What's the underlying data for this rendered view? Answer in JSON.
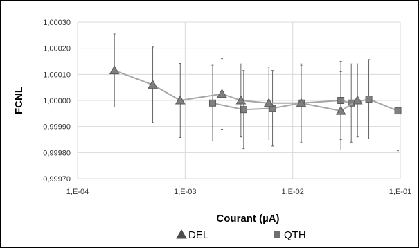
{
  "chart_data": {
    "type": "line",
    "title": "",
    "xlabel": "Courant (µA)",
    "ylabel": "FCNL",
    "x_scale": "log",
    "xlim": [
      0.0001,
      0.1
    ],
    "ylim": [
      0.9997,
      1.0003
    ],
    "y_ticks": [
      "1,00030",
      "1,00020",
      "1,00010",
      "1,00000",
      "0,99990",
      "0,99980",
      "0,99970"
    ],
    "x_ticks": [
      "1,E-04",
      "1,E-03",
      "1,E-02",
      "1,E-01"
    ],
    "grid": true,
    "legend_position": "bottom",
    "series": [
      {
        "name": "DEL",
        "marker": "triangle",
        "color": "#7f7f7f",
        "x": [
          0.00022,
          0.0005,
          0.0009,
          0.0022,
          0.0033,
          0.006,
          0.012,
          0.028,
          0.04
        ],
        "y": [
          1.000115,
          1.00006,
          1.0,
          1.000025,
          1.0,
          0.99999,
          0.99999,
          0.99996,
          1.0
        ],
        "err": [
          0.00014,
          0.000145,
          0.000142,
          0.000135,
          0.00014,
          0.000138,
          0.000145,
          0.00015,
          0.00014
        ]
      },
      {
        "name": "QTH",
        "marker": "square",
        "color": "#808080",
        "x": [
          0.0018,
          0.0035,
          0.0065,
          0.012,
          0.028,
          0.035,
          0.051,
          0.095
        ],
        "y": [
          0.99999,
          0.999965,
          0.99997,
          0.99999,
          1.0,
          0.99999,
          1.000005,
          0.99996
        ],
        "err": [
          0.000145,
          0.00015,
          0.000145,
          0.00015,
          0.00015,
          0.00015,
          0.000152,
          0.000153
        ]
      }
    ]
  }
}
